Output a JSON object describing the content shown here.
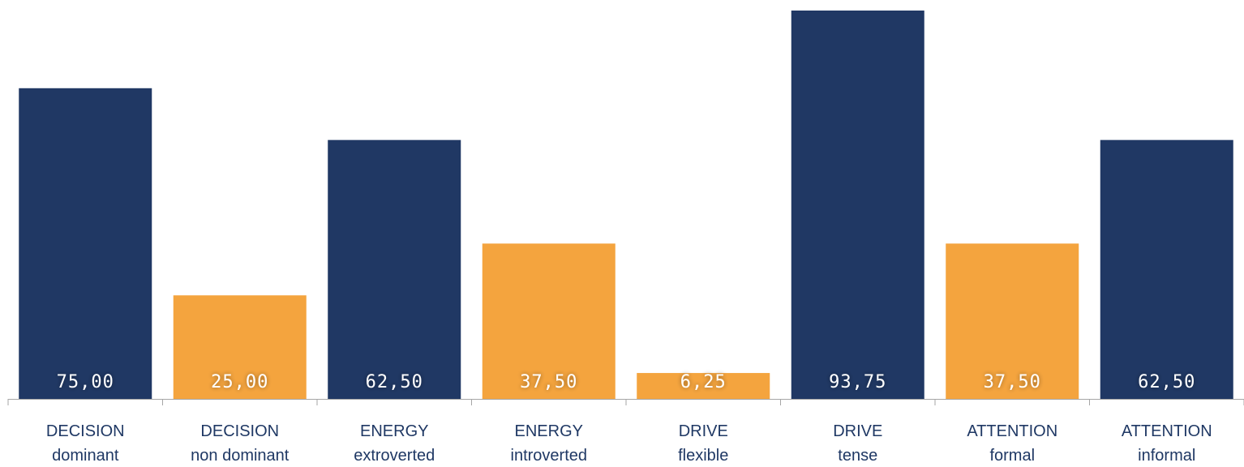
{
  "chart_data": {
    "type": "bar",
    "categories": [
      [
        "DECISION",
        "dominant"
      ],
      [
        "DECISION",
        "non dominant"
      ],
      [
        "ENERGY",
        "extroverted"
      ],
      [
        "ENERGY",
        "introverted"
      ],
      [
        "DRIVE",
        "flexible"
      ],
      [
        "DRIVE",
        "tense"
      ],
      [
        "ATTENTION",
        "formal"
      ],
      [
        "ATTENTION",
        "informal"
      ]
    ],
    "values": [
      75.0,
      25.0,
      62.5,
      37.5,
      6.25,
      93.75,
      37.5,
      62.5
    ],
    "value_labels": [
      "75,00",
      "25,00",
      "62,50",
      "37,50",
      "6,25",
      "93,75",
      "37,50",
      "62,50"
    ],
    "ylim": [
      0,
      100
    ],
    "grid": false,
    "legend": "none",
    "colors": {
      "dominant_bar": "#203864",
      "secondary_bar": "#f4a43e",
      "category_text": "#1f3864",
      "value_text": "#ffffff",
      "axis": "#a6a6a6"
    },
    "bar_color_keys": [
      "dominant_bar",
      "secondary_bar",
      "dominant_bar",
      "secondary_bar",
      "secondary_bar",
      "dominant_bar",
      "secondary_bar",
      "dominant_bar"
    ]
  }
}
